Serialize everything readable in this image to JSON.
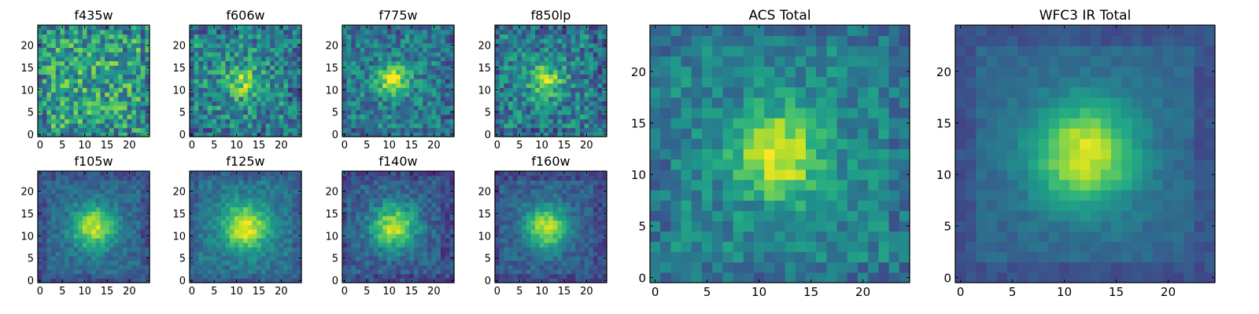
{
  "figure": {
    "background": "#ffffff",
    "colormap": "viridis"
  },
  "chart_data": [
    {
      "type": "heatmap",
      "title": "f435w",
      "grid_size": 25,
      "xlim": [
        0,
        24
      ],
      "ylim": [
        0,
        24
      ],
      "xticks": [
        0,
        5,
        10,
        15,
        20
      ],
      "yticks": [
        0,
        5,
        10,
        15,
        20
      ],
      "peak": [
        12,
        12
      ],
      "peak_amplitude": 0.05,
      "peak_sigma": 4.0,
      "background_level": 0.55,
      "noise": 0.28,
      "values_description": "pixel brightness is near-uniform noise; faint central source"
    },
    {
      "type": "heatmap",
      "title": "f606w",
      "grid_size": 25,
      "xlim": [
        0,
        24
      ],
      "ylim": [
        0,
        24
      ],
      "xticks": [
        0,
        5,
        10,
        15,
        20
      ],
      "yticks": [
        0,
        5,
        10,
        15,
        20
      ],
      "peak": [
        11,
        12
      ],
      "peak_amplitude": 0.35,
      "peak_sigma": 2.6,
      "background_level": 0.45,
      "noise": 0.24
    },
    {
      "type": "heatmap",
      "title": "f775w",
      "grid_size": 25,
      "xlim": [
        0,
        24
      ],
      "ylim": [
        0,
        24
      ],
      "xticks": [
        0,
        5,
        10,
        15,
        20
      ],
      "yticks": [
        0,
        5,
        10,
        15,
        20
      ],
      "peak": [
        11,
        12
      ],
      "peak_amplitude": 0.5,
      "peak_sigma": 2.4,
      "background_level": 0.42,
      "noise": 0.2
    },
    {
      "type": "heatmap",
      "title": "f850lp",
      "grid_size": 25,
      "xlim": [
        0,
        24
      ],
      "ylim": [
        0,
        24
      ],
      "xticks": [
        0,
        5,
        10,
        15,
        20
      ],
      "yticks": [
        0,
        5,
        10,
        15,
        20
      ],
      "peak": [
        11,
        12
      ],
      "peak_amplitude": 0.45,
      "peak_sigma": 2.6,
      "background_level": 0.42,
      "noise": 0.22
    },
    {
      "type": "heatmap",
      "title": "f105w",
      "grid_size": 25,
      "xlim": [
        0,
        24
      ],
      "ylim": [
        0,
        24
      ],
      "xticks": [
        0,
        5,
        10,
        15,
        20
      ],
      "yticks": [
        0,
        5,
        10,
        15,
        20
      ],
      "peak": [
        12,
        12
      ],
      "peak_amplitude": 0.6,
      "peak_sigma": 3.4,
      "background_level": 0.33,
      "noise": 0.1
    },
    {
      "type": "heatmap",
      "title": "f125w",
      "grid_size": 25,
      "xlim": [
        0,
        24
      ],
      "ylim": [
        0,
        24
      ],
      "xticks": [
        0,
        5,
        10,
        15,
        20
      ],
      "yticks": [
        0,
        5,
        10,
        15,
        20
      ],
      "peak": [
        12,
        12
      ],
      "peak_amplitude": 0.6,
      "peak_sigma": 3.6,
      "background_level": 0.38,
      "noise": 0.1
    },
    {
      "type": "heatmap",
      "title": "f140w",
      "grid_size": 25,
      "xlim": [
        0,
        24
      ],
      "ylim": [
        0,
        24
      ],
      "xticks": [
        0,
        5,
        10,
        15,
        20
      ],
      "yticks": [
        0,
        5,
        10,
        15,
        20
      ],
      "peak": [
        11,
        12
      ],
      "peak_amplitude": 0.6,
      "peak_sigma": 3.5,
      "background_level": 0.3,
      "noise": 0.12
    },
    {
      "type": "heatmap",
      "title": "f160w",
      "grid_size": 25,
      "xlim": [
        0,
        24
      ],
      "ylim": [
        0,
        24
      ],
      "xticks": [
        0,
        5,
        10,
        15,
        20
      ],
      "yticks": [
        0,
        5,
        10,
        15,
        20
      ],
      "peak": [
        11,
        12
      ],
      "peak_amplitude": 0.6,
      "peak_sigma": 3.4,
      "background_level": 0.3,
      "noise": 0.1
    },
    {
      "type": "heatmap",
      "title": "ACS Total",
      "grid_size": 25,
      "xlim": [
        0,
        24
      ],
      "ylim": [
        0,
        24
      ],
      "xticks": [
        0,
        5,
        10,
        15,
        20
      ],
      "yticks": [
        0,
        5,
        10,
        15,
        20
      ],
      "peak": [
        12,
        12
      ],
      "peak_amplitude": 0.55,
      "peak_sigma": 2.8,
      "background_level": 0.45,
      "noise": 0.14
    },
    {
      "type": "heatmap",
      "title": "WFC3 IR Total",
      "grid_size": 25,
      "xlim": [
        0,
        24
      ],
      "ylim": [
        0,
        24
      ],
      "xticks": [
        0,
        5,
        10,
        15,
        20
      ],
      "yticks": [
        0,
        5,
        10,
        15,
        20
      ],
      "peak": [
        12,
        12
      ],
      "peak_amplitude": 0.62,
      "peak_sigma": 3.6,
      "background_level": 0.33,
      "noise": 0.05
    }
  ]
}
